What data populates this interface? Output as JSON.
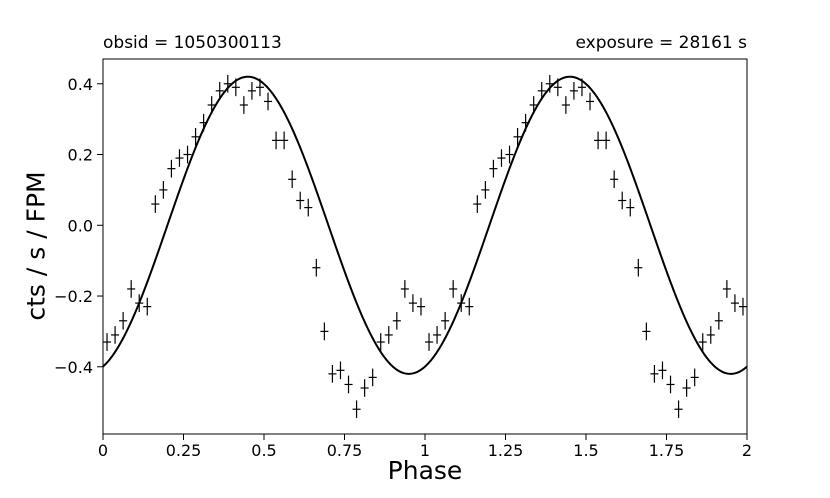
{
  "header": {
    "left_title": "obsid = 1050300113",
    "right_title": "exposure = 28161 s"
  },
  "chart_data": {
    "type": "scatter",
    "xlabel": "Phase",
    "ylabel": "cts / s / FPM",
    "xlim": [
      0,
      2
    ],
    "ylim": [
      -0.59,
      0.47
    ],
    "xticks": [
      0,
      0.25,
      0.5,
      0.75,
      1,
      1.25,
      1.5,
      1.75,
      2
    ],
    "xtick_labels": [
      "0",
      "0.25",
      "0.5",
      "0.75",
      "1",
      "1.25",
      "1.5",
      "1.75",
      "2"
    ],
    "yticks": [
      -0.4,
      -0.2,
      0.0,
      0.2,
      0.4
    ],
    "ytick_labels": [
      "−0.4",
      "−0.2",
      "0.0",
      "0.2",
      "0.4"
    ],
    "grid": false,
    "series": [
      {
        "kind": "points_with_errorbars",
        "color": "#000000",
        "x_err": 0.0125,
        "y_err": 0.025,
        "x": [
          0.0125,
          0.0375,
          0.0625,
          0.0875,
          0.1125,
          0.1375,
          0.1625,
          0.1875,
          0.2125,
          0.2375,
          0.2625,
          0.2875,
          0.3125,
          0.3375,
          0.3625,
          0.3875,
          0.4125,
          0.4375,
          0.4625,
          0.4875,
          0.5125,
          0.5375,
          0.5625,
          0.5875,
          0.6125,
          0.6375,
          0.6625,
          0.6875,
          0.7125,
          0.7375,
          0.7625,
          0.7875,
          0.8125,
          0.8375,
          0.8625,
          0.8875,
          0.9125,
          0.9375,
          0.9625,
          0.9875
        ],
        "y": [
          -0.33,
          -0.31,
          -0.27,
          -0.18,
          -0.22,
          -0.23,
          0.06,
          0.1,
          0.16,
          0.19,
          0.2,
          0.25,
          0.29,
          0.34,
          0.38,
          0.4,
          0.39,
          0.34,
          0.38,
          0.39,
          0.35,
          0.24,
          0.24,
          0.13,
          0.07,
          0.05,
          -0.12,
          -0.3,
          -0.42,
          -0.41,
          -0.45,
          -0.52,
          -0.46,
          -0.43,
          -0.33,
          -0.31,
          -0.27,
          -0.18,
          -0.22,
          -0.23
        ]
      },
      {
        "kind": "line",
        "model": "sinusoid",
        "color": "#000000",
        "amplitude": 0.42,
        "period": 1.0,
        "peak_phase": 0.45
      }
    ]
  }
}
